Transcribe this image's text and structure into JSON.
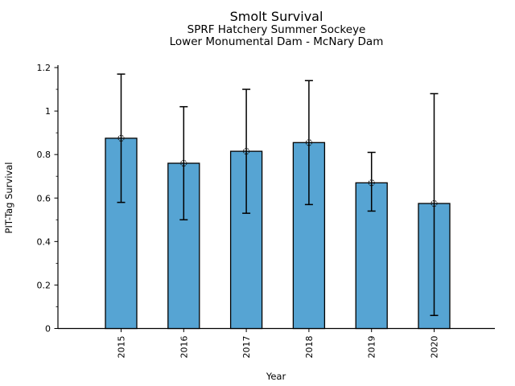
{
  "page": {
    "background_color": "#ffffff"
  },
  "chart_data": {
    "type": "bar",
    "title": "Smolt Survival",
    "subtitle1": "SPRF Hatchery Summer Sockeye",
    "subtitle2": "Lower Monumental Dam - McNary Dam",
    "xlabel": "Year",
    "ylabel": "PIT-Tag Survival",
    "categories": [
      "2015",
      "2016",
      "2017",
      "2018",
      "2019",
      "2020"
    ],
    "values": [
      0.875,
      0.76,
      0.815,
      0.855,
      0.67,
      0.575
    ],
    "error_low": [
      0.58,
      0.5,
      0.53,
      0.57,
      0.54,
      0.06
    ],
    "error_high": [
      1.17,
      1.02,
      1.1,
      1.14,
      0.81,
      1.08
    ],
    "ylim": [
      0,
      1.2
    ],
    "yticks": [
      0,
      0.2,
      0.4,
      0.6,
      0.8,
      1,
      1.2
    ],
    "ytick_labels": [
      "0",
      "0.2",
      "0.4",
      "0.6",
      "0.8",
      "1",
      "1.2"
    ],
    "y_minor_step": 0.1,
    "grid": false,
    "legend": null,
    "bar_color": "#56A4D3",
    "bar_edge_color": "#000000",
    "error_bar_color": "#000000",
    "marker": "open-circle"
  }
}
